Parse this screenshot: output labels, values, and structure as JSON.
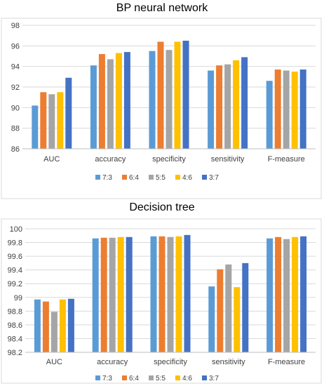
{
  "chart_data": [
    {
      "type": "bar",
      "title": "BP neural network",
      "categories": [
        "AUC",
        "accuracy",
        "specificity",
        "sensitivity",
        "F-measure"
      ],
      "ylim": [
        86,
        98
      ],
      "yticks": [
        "86",
        "88",
        "90",
        "92",
        "94",
        "96",
        "98"
      ],
      "grid": true,
      "legend_position": "bottom",
      "series": [
        {
          "name": "7:3",
          "color": "#5b9bd5",
          "values": [
            90.2,
            94.1,
            95.5,
            93.6,
            92.6
          ]
        },
        {
          "name": "6:4",
          "color": "#ed7d31",
          "values": [
            91.5,
            95.2,
            96.4,
            94.1,
            93.7
          ]
        },
        {
          "name": "5:5",
          "color": "#a5a5a5",
          "values": [
            91.3,
            94.7,
            95.6,
            94.2,
            93.6
          ]
        },
        {
          "name": "4:6",
          "color": "#ffc000",
          "values": [
            91.5,
            95.3,
            96.4,
            94.6,
            93.5
          ]
        },
        {
          "name": "3:7",
          "color": "#4472c4",
          "values": [
            92.9,
            95.4,
            96.5,
            94.9,
            93.7
          ]
        }
      ]
    },
    {
      "type": "bar",
      "title": "Decision tree",
      "categories": [
        "AUC",
        "accuracy",
        "specificity",
        "sensitivity",
        "F-measure"
      ],
      "ylim": [
        98.2,
        100
      ],
      "yticks": [
        "98.2",
        "98.4",
        "98.6",
        "98.8",
        "99",
        "99.2",
        "99.4",
        "99.6",
        "99.8",
        "100"
      ],
      "grid": true,
      "legend_position": "bottom",
      "series": [
        {
          "name": "7:3",
          "color": "#5b9bd5",
          "values": [
            98.97,
            99.86,
            99.89,
            99.16,
            99.86
          ]
        },
        {
          "name": "6:4",
          "color": "#ed7d31",
          "values": [
            98.94,
            99.87,
            99.89,
            99.41,
            99.88
          ]
        },
        {
          "name": "5:5",
          "color": "#a5a5a5",
          "values": [
            98.79,
            99.87,
            99.88,
            99.48,
            99.85
          ]
        },
        {
          "name": "4:6",
          "color": "#ffc000",
          "values": [
            98.97,
            99.88,
            99.89,
            99.15,
            99.88
          ]
        },
        {
          "name": "3:7",
          "color": "#4472c4",
          "values": [
            98.98,
            99.88,
            99.91,
            99.5,
            99.89
          ]
        }
      ]
    }
  ]
}
